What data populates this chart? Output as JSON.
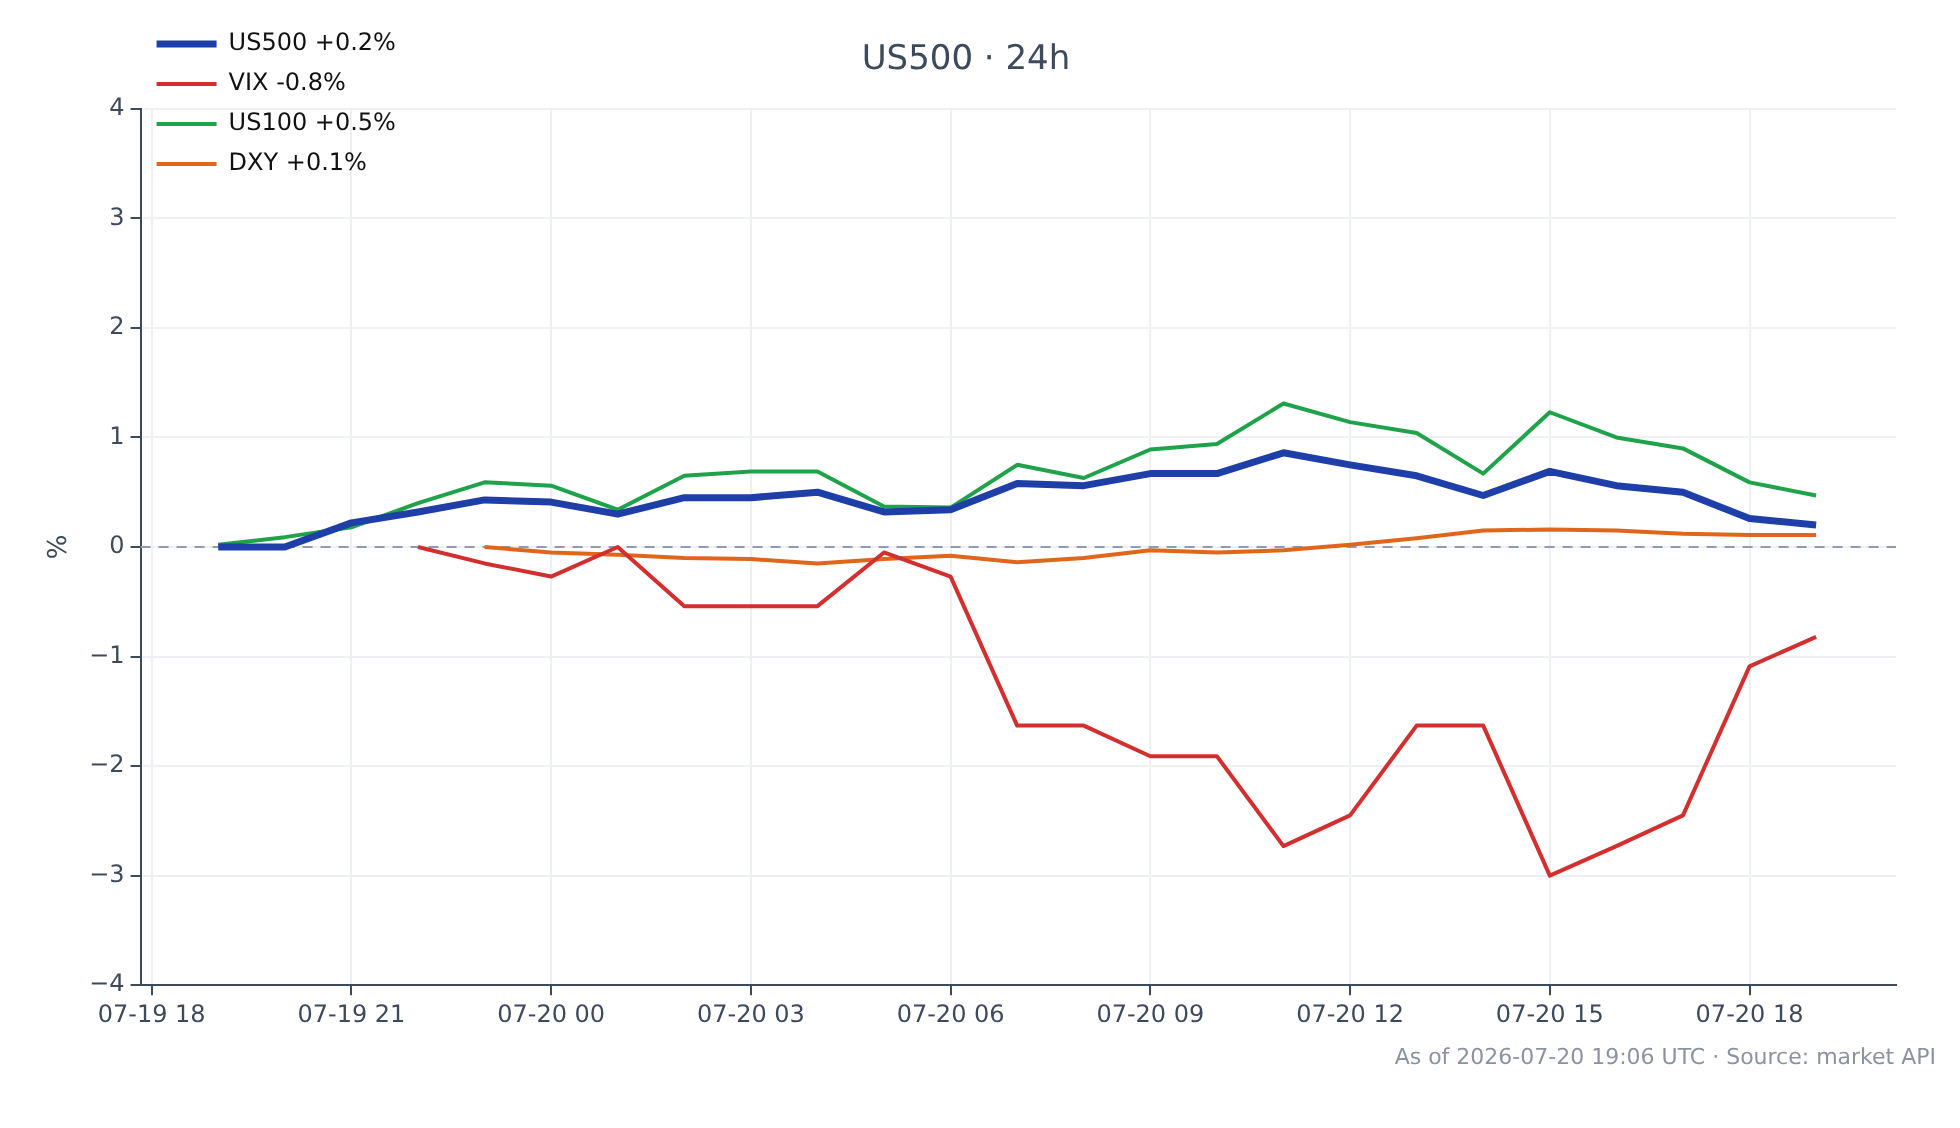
{
  "chart_data": {
    "type": "line",
    "title": "US500 · 24h",
    "ylabel": "%",
    "x": [
      "2026-07-19T19:00",
      "2026-07-19T20:00",
      "2026-07-19T21:00",
      "2026-07-19T22:00",
      "2026-07-19T23:00",
      "2026-07-20T00:00",
      "2026-07-20T01:00",
      "2026-07-20T02:00",
      "2026-07-20T03:00",
      "2026-07-20T04:00",
      "2026-07-20T05:00",
      "2026-07-20T06:00",
      "2026-07-20T07:00",
      "2026-07-20T08:00",
      "2026-07-20T09:00",
      "2026-07-20T10:00",
      "2026-07-20T11:00",
      "2026-07-20T12:00",
      "2026-07-20T13:00",
      "2026-07-20T14:00",
      "2026-07-20T15:00",
      "2026-07-20T16:00",
      "2026-07-20T17:00",
      "2026-07-20T18:00",
      "2026-07-20T19:00"
    ],
    "series": [
      {
        "name": "US500 +0.2%",
        "color": "#1f3fa8",
        "values": [
          0,
          0,
          0.22,
          0.32,
          0.43,
          0.41,
          0.3,
          0.45,
          0.45,
          0.5,
          0.32,
          0.34,
          0.58,
          0.56,
          0.67,
          0.67,
          0.86,
          0.75,
          0.65,
          0.47,
          0.69,
          0.56,
          0.5,
          0.26,
          0.2
        ]
      },
      {
        "name": "VIX -0.8%",
        "color": "#d32f2f",
        "values": [
          null,
          null,
          null,
          0,
          -0.15,
          -0.27,
          0,
          -0.54,
          -0.54,
          -0.54,
          -0.05,
          -0.27,
          -1.63,
          -1.63,
          -1.91,
          -1.91,
          -2.73,
          -2.45,
          -1.63,
          -1.63,
          -3.0,
          -2.73,
          -2.45,
          -1.09,
          -0.82
        ]
      },
      {
        "name": "US100 +0.5%",
        "color": "#1fa34a",
        "values": [
          0.02,
          0.09,
          0.18,
          0.4,
          0.59,
          0.56,
          0.34,
          0.65,
          0.69,
          0.69,
          0.37,
          0.36,
          0.75,
          0.63,
          0.89,
          0.94,
          1.31,
          1.14,
          1.04,
          0.67,
          1.23,
          1.0,
          0.9,
          0.59,
          0.47
        ]
      },
      {
        "name": "DXY +0.1%",
        "color": "#e0661b",
        "values": [
          null,
          null,
          null,
          null,
          0,
          -0.05,
          -0.07,
          -0.1,
          -0.11,
          -0.15,
          -0.11,
          -0.08,
          -0.14,
          -0.1,
          -0.03,
          -0.05,
          -0.03,
          0.02,
          0.08,
          0.15,
          0.16,
          0.15,
          0.12,
          0.11,
          0.11
        ]
      }
    ],
    "xlim": [
      "2026-07-19T17:50",
      "2026-07-20T20:12"
    ],
    "xticks": [
      {
        "value": "2026-07-19T18:00",
        "label": "07-19 18"
      },
      {
        "value": "2026-07-19T21:00",
        "label": "07-19 21"
      },
      {
        "value": "2026-07-20T00:00",
        "label": "07-20 00"
      },
      {
        "value": "2026-07-20T03:00",
        "label": "07-20 03"
      },
      {
        "value": "2026-07-20T06:00",
        "label": "07-20 06"
      },
      {
        "value": "2026-07-20T09:00",
        "label": "07-20 09"
      },
      {
        "value": "2026-07-20T12:00",
        "label": "07-20 12"
      },
      {
        "value": "2026-07-20T15:00",
        "label": "07-20 15"
      },
      {
        "value": "2026-07-20T18:00",
        "label": "07-20 18"
      }
    ],
    "ylim": [
      -4,
      4
    ],
    "yticks": [
      {
        "value": -4,
        "label": "−4"
      },
      {
        "value": -3,
        "label": "−3"
      },
      {
        "value": -2,
        "label": "−2"
      },
      {
        "value": -1,
        "label": "−1"
      },
      0,
      1,
      2,
      3,
      4
    ],
    "ref_lines": [
      {
        "axis": "y",
        "value": 0,
        "color": "#8e9bb5",
        "line_style": "dashed"
      }
    ],
    "grid": true,
    "legend": "top left",
    "marker": "none",
    "line_style": "solid",
    "annotations": [
      "As of 2026-07-20 19:06 UTC · Source: market API"
    ]
  }
}
